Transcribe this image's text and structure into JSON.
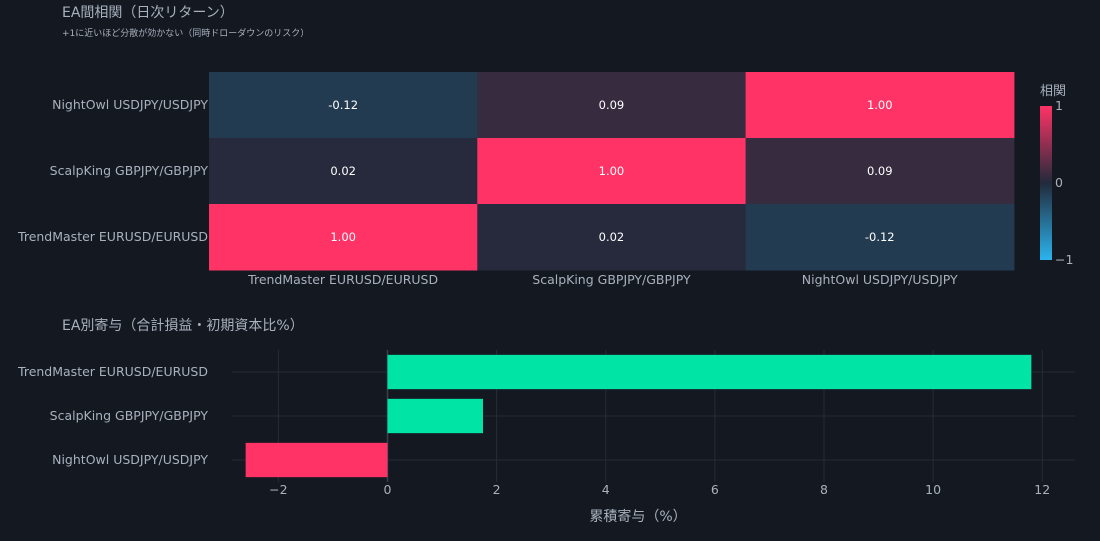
{
  "colors": {
    "background": "#131821",
    "text": "#a9b1bd",
    "grid": "#262c36",
    "heat_low": "#2bb4ee",
    "heat_mid": "#222a3b",
    "heat_high": "#ff3366",
    "bar_positive": "#00e4a6",
    "bar_negative": "#ff3366"
  },
  "chart_data": [
    {
      "type": "heatmap",
      "title": "EA間相関（日次リターン）",
      "subtitle": "+1に近いほど分散が効かない（同時ドローダウンのリスク）",
      "x_categories": [
        "TrendMaster EURUSD/EURUSD",
        "ScalpKing GBPJPY/GBPJPY",
        "NightOwl USDJPY/USDJPY"
      ],
      "y_categories": [
        "NightOwl USDJPY/USDJPY",
        "ScalpKing GBPJPY/GBPJPY",
        "TrendMaster EURUSD/EURUSD"
      ],
      "values": [
        [
          -0.12,
          0.09,
          1.0
        ],
        [
          0.02,
          1.0,
          0.09
        ],
        [
          1.0,
          0.02,
          -0.12
        ]
      ],
      "cell_labels": [
        [
          "-0.12",
          "0.09",
          "1.00"
        ],
        [
          "0.02",
          "1.00",
          "0.09"
        ],
        [
          "1.00",
          "0.02",
          "-0.12"
        ]
      ],
      "zrange": [
        -1,
        1
      ],
      "colorbar": {
        "title": "相関",
        "ticks": [
          1,
          0,
          -1
        ],
        "tick_labels": [
          "1",
          "0",
          "−1"
        ]
      }
    },
    {
      "type": "bar",
      "orientation": "horizontal",
      "title": "EA別寄与（合計損益・初期資本比%）",
      "categories": [
        "TrendMaster EURUSD/EURUSD",
        "ScalpKing GBPJPY/GBPJPY",
        "NightOwl USDJPY/USDJPY"
      ],
      "values": [
        11.8,
        1.75,
        -2.6
      ],
      "xlabel": "累積寄与（%）",
      "xlim": [
        -2.85,
        12.6
      ],
      "xticks": [
        -2,
        0,
        2,
        4,
        6,
        8,
        10,
        12
      ],
      "xtick_labels": [
        "−2",
        "0",
        "2",
        "4",
        "6",
        "8",
        "10",
        "12"
      ],
      "grid": true
    }
  ]
}
